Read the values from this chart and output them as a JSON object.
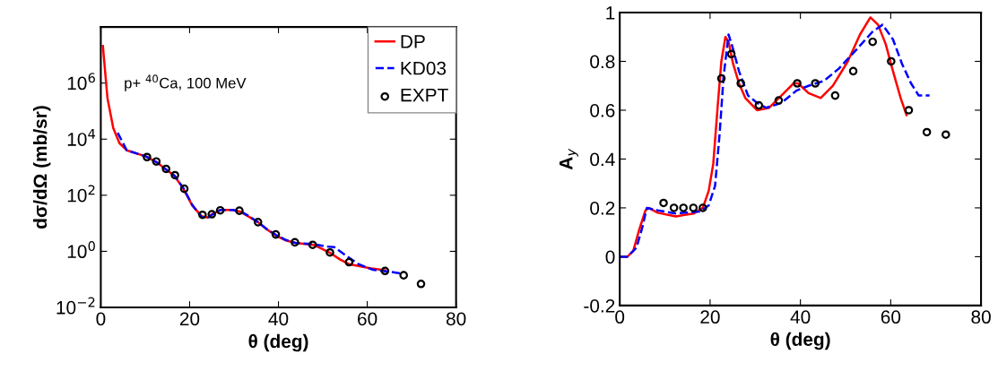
{
  "chart_data": [
    {
      "type": "line",
      "xlabel": "θ (deg)",
      "ylabel": "dσ/dΩ (mb/sr)",
      "log": "y",
      "xlim": [
        0,
        80
      ],
      "xticks": [
        0,
        20,
        40,
        60,
        80
      ],
      "ylim": [
        0.01,
        100000000
      ],
      "yticks": [
        {
          "value": 0.01,
          "label": "10$^{−2}$"
        },
        {
          "value": 1,
          "label": "10$^{0}$"
        },
        {
          "value": 100,
          "label": "10$^{2}$"
        },
        {
          "value": 10000,
          "label": "10$^{4}$"
        },
        {
          "value": 1000000,
          "label": "10$^{6}$"
        }
      ],
      "legend": "top right",
      "grid": false,
      "annotations": [
        "p+ $^{40}$Ca, 100 MeV"
      ],
      "series": [
        {
          "name": "DP",
          "color": "#ff0000",
          "line_style": "solid",
          "marker": "none",
          "x": [
            0.47,
            1.5,
            2.8,
            4.2,
            5.85,
            10.2,
            12.6,
            14.6,
            16.6,
            18.6,
            20.6,
            22.7,
            24,
            25,
            27,
            29.7,
            31.4,
            33.1,
            35.4,
            37.4,
            39.5,
            41.5,
            43.8,
            47.9,
            49.9,
            51.6,
            53.9,
            55.9,
            58,
            60.6,
            64
          ],
          "values": [
            21000000,
            290000,
            25000,
            7200,
            4000,
            2400,
            1500,
            850,
            490,
            170,
            43,
            18,
            16,
            21,
            30,
            30,
            26,
            18,
            11,
            6.0,
            3.6,
            2.5,
            2.0,
            1.7,
            1.2,
            0.89,
            0.51,
            0.35,
            0.3,
            0.25,
            0.21
          ]
        },
        {
          "name": "KD03",
          "color": "#0000ff",
          "line_style": "dashed",
          "marker": "none",
          "x": [
            3.8,
            5.85,
            10.2,
            12.6,
            14.6,
            16.6,
            18.6,
            20.6,
            22.7,
            24,
            25,
            27,
            29.7,
            31.4,
            33.1,
            35.4,
            37.4,
            39.5,
            41.5,
            43.8,
            47.9,
            50.5,
            52.6,
            55.3,
            58,
            61.3,
            64.7,
            68
          ],
          "values": [
            17000,
            4000,
            2400,
            1500,
            850,
            500,
            180,
            45,
            17,
            15,
            20,
            30,
            30,
            27,
            19,
            11,
            6.2,
            3.8,
            2.6,
            2.0,
            1.8,
            1.5,
            1.4,
            0.69,
            0.35,
            0.22,
            0.19,
            0.16
          ]
        },
        {
          "name": "EXPT",
          "color": "#000000",
          "type": "scatter",
          "marker": "circle",
          "x": [
            10.4,
            12.5,
            14.7,
            16.7,
            18.8,
            22.9,
            25,
            26.9,
            31.2,
            35.4,
            39.4,
            43.7,
            47.7,
            51.6,
            55.9,
            64,
            68.2,
            72.1
          ],
          "values": [
            2300,
            1600,
            870,
            520,
            170,
            20,
            21,
            29,
            28,
            11,
            4.0,
            2.1,
            1.7,
            0.91,
            0.41,
            0.2,
            0.14,
            0.069
          ]
        }
      ]
    },
    {
      "type": "line",
      "xlabel": "θ (deg)",
      "ylabel": "A$_{y}$",
      "xlim": [
        0,
        80
      ],
      "xticks": [
        0,
        20,
        40,
        60,
        80
      ],
      "ylim": [
        -0.2,
        1
      ],
      "yticks": [
        -0.2,
        0,
        0.2,
        0.4,
        0.6,
        0.8,
        1
      ],
      "legend": false,
      "grid": false,
      "series": [
        {
          "color": "#ff0000",
          "line_style": "solid",
          "marker": "none",
          "x": [
            0,
            1.7,
            3,
            4.3,
            5.7,
            6.4,
            8.4,
            12.4,
            16.4,
            18.4,
            19.7,
            20.7,
            21.7,
            22.5,
            23.4,
            24.1,
            25.1,
            26.4,
            27.8,
            30.4,
            33.1,
            35.8,
            38.5,
            39.5,
            41.8,
            44.5,
            47.2,
            50.5,
            53.2,
            55.5,
            57.2,
            58.9,
            60.5,
            62.2,
            63.5
          ],
          "values": [
            0,
            0,
            0.024,
            0.11,
            0.19,
            0.2,
            0.18,
            0.165,
            0.177,
            0.2,
            0.27,
            0.38,
            0.62,
            0.8,
            0.9,
            0.88,
            0.79,
            0.71,
            0.65,
            0.6,
            0.61,
            0.66,
            0.71,
            0.71,
            0.67,
            0.65,
            0.7,
            0.8,
            0.91,
            0.98,
            0.95,
            0.87,
            0.76,
            0.65,
            0.58
          ]
        },
        {
          "color": "#0000ff",
          "line_style": "dashed",
          "marker": "none",
          "x": [
            0,
            1.7,
            3.7,
            5,
            6,
            8.4,
            12.4,
            17.7,
            19.7,
            21.1,
            22.1,
            23,
            24.1,
            25.1,
            26.4,
            28.4,
            30.4,
            32.4,
            35.8,
            39.1,
            41.8,
            45.2,
            48.5,
            52.5,
            55.9,
            58.2,
            60.5,
            62.5,
            64.5,
            66.2,
            68.6
          ],
          "values": [
            0,
            0,
            0.037,
            0.12,
            0.2,
            0.19,
            0.177,
            0.185,
            0.21,
            0.29,
            0.5,
            0.74,
            0.91,
            0.85,
            0.76,
            0.66,
            0.63,
            0.61,
            0.63,
            0.68,
            0.7,
            0.72,
            0.77,
            0.85,
            0.92,
            0.95,
            0.89,
            0.79,
            0.71,
            0.66,
            0.66
          ]
        },
        {
          "color": "#000000",
          "type": "scatter",
          "marker": "circle",
          "x": [
            9.7,
            12,
            14.1,
            16.3,
            18.4,
            22.5,
            24.7,
            26.8,
            30.8,
            35.2,
            39.3,
            43.3,
            47.7,
            51.7,
            56,
            60.1,
            64,
            68,
            72.2
          ],
          "values": [
            0.22,
            0.2,
            0.2,
            0.2,
            0.2,
            0.73,
            0.83,
            0.71,
            0.62,
            0.64,
            0.71,
            0.71,
            0.66,
            0.76,
            0.88,
            0.8,
            0.6,
            0.51,
            0.5
          ]
        }
      ]
    }
  ]
}
